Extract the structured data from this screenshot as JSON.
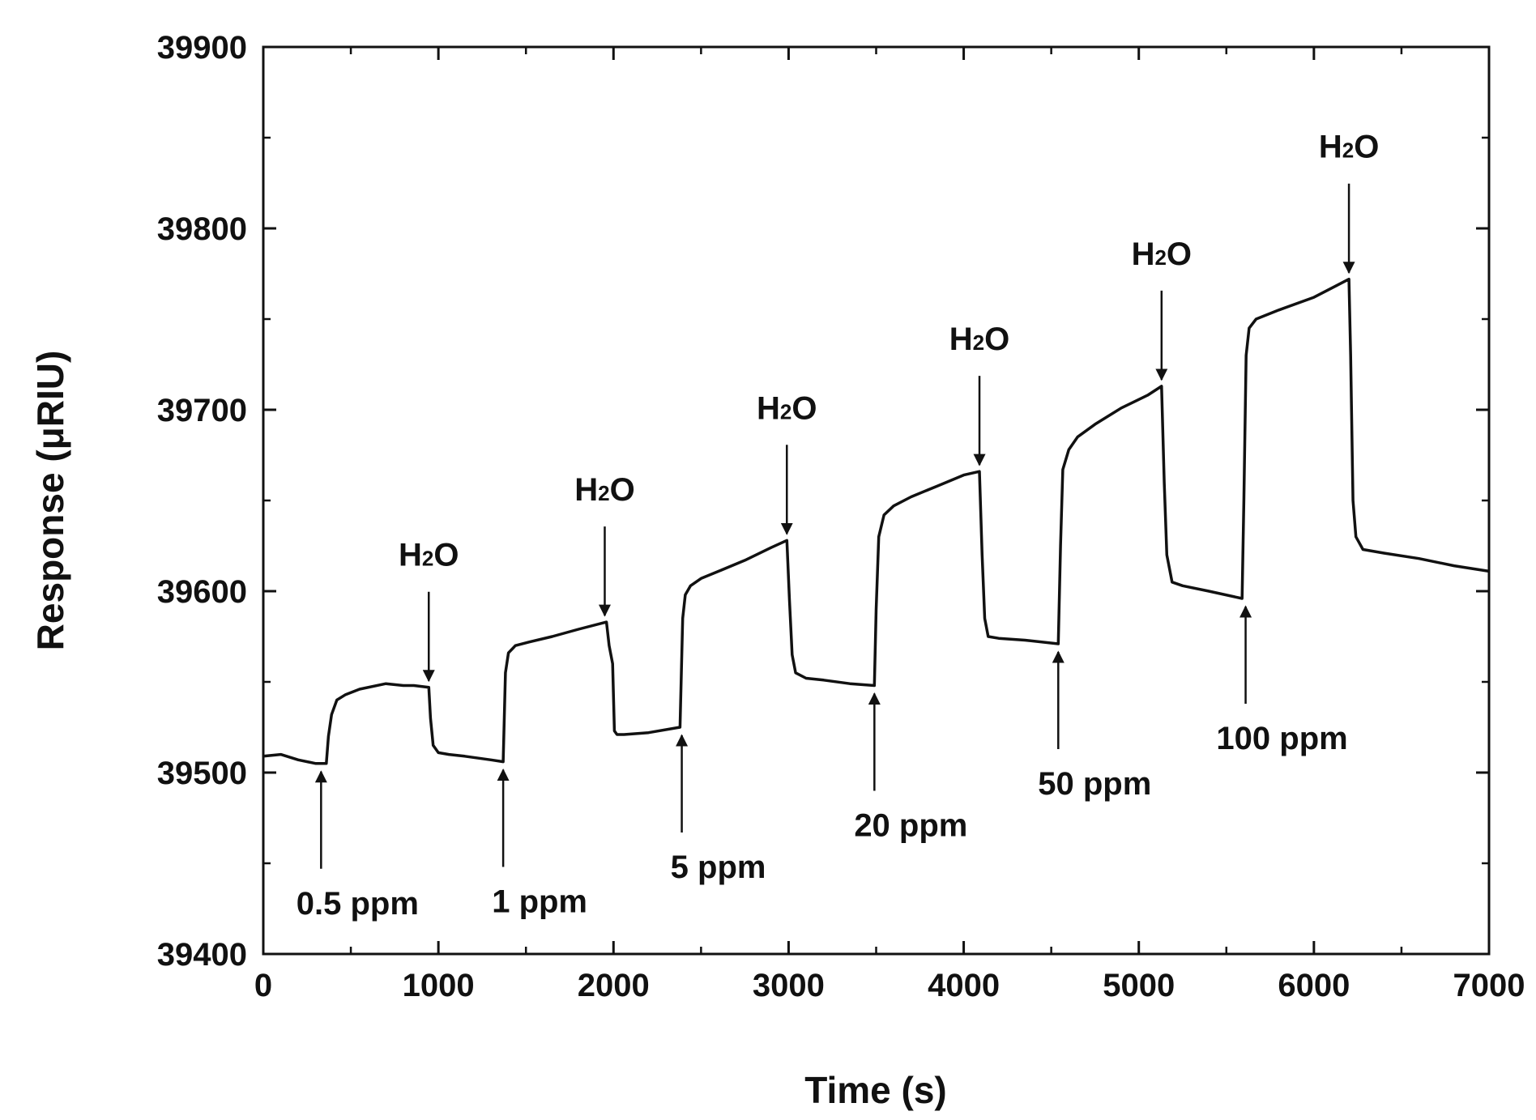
{
  "chart_data": {
    "type": "line",
    "title": "",
    "xlabel": "Time (s)",
    "ylabel": "Response (μRIU)",
    "xlim": [
      0,
      7000
    ],
    "ylim": [
      39400,
      39900
    ],
    "xticks": [
      "0",
      "1000",
      "2000",
      "3000",
      "4000",
      "5000",
      "6000",
      "7000"
    ],
    "xtick_values": [
      0,
      1000,
      2000,
      3000,
      4000,
      5000,
      6000,
      7000
    ],
    "yticks": [
      "39400",
      "39500",
      "39600",
      "39700",
      "39800",
      "39900"
    ],
    "ytick_values": [
      39400,
      39500,
      39600,
      39700,
      39800,
      39900
    ],
    "grid": false,
    "series": [
      {
        "name": "Response",
        "color": "#111111",
        "x": [
          0,
          100,
          200,
          300,
          360,
          372,
          390,
          420,
          470,
          550,
          700,
          800,
          860,
          945,
          955,
          970,
          1000,
          1060,
          1150,
          1300,
          1370,
          1383,
          1400,
          1440,
          1520,
          1650,
          1800,
          1960,
          1975,
          1995,
          2005,
          2020,
          2060,
          2200,
          2380,
          2395,
          2410,
          2440,
          2500,
          2600,
          2750,
          2900,
          2990,
          3005,
          3020,
          3040,
          3100,
          3200,
          3350,
          3490,
          3500,
          3515,
          3545,
          3600,
          3700,
          3850,
          4000,
          4090,
          4105,
          4120,
          4140,
          4200,
          4350,
          4540,
          4553,
          4566,
          4600,
          4650,
          4750,
          4900,
          5050,
          5130,
          5145,
          5160,
          5190,
          5250,
          5400,
          5590,
          5600,
          5613,
          5630,
          5670,
          5800,
          6000,
          6200,
          6210,
          6223,
          6240,
          6280,
          6400,
          6600,
          6800,
          7000
        ],
        "y": [
          39509,
          39510,
          39507,
          39505,
          39505,
          39520,
          39532,
          39540,
          39543,
          39546,
          39549,
          39548,
          39548,
          39547,
          39530,
          39515,
          39511,
          39510,
          39509,
          39507,
          39506,
          39555,
          39566,
          39570,
          39572,
          39575,
          39579,
          39583,
          39570,
          39560,
          39523,
          39521,
          39521,
          39522,
          39525,
          39585,
          39598,
          39603,
          39607,
          39611,
          39617,
          39624,
          39628,
          39595,
          39565,
          39555,
          39552,
          39551,
          39549,
          39548,
          39590,
          39630,
          39642,
          39647,
          39652,
          39658,
          39664,
          39666,
          39620,
          39585,
          39575,
          39574,
          39573,
          39571,
          39625,
          39667,
          39678,
          39685,
          39692,
          39701,
          39708,
          39713,
          39660,
          39620,
          39605,
          39603,
          39600,
          39596,
          39650,
          39730,
          39745,
          39750,
          39755,
          39762,
          39772,
          39730,
          39650,
          39630,
          39623,
          39621,
          39618,
          39614,
          39611
        ]
      }
    ],
    "annotations": [
      {
        "type": "injection",
        "label": "0.5 ppm",
        "x": 330,
        "y": 39505
      },
      {
        "type": "injection",
        "label": "1 ppm",
        "x": 1370,
        "y": 39506
      },
      {
        "type": "injection",
        "label": "5 ppm",
        "x": 2390,
        "y": 39525
      },
      {
        "type": "injection",
        "label": "20 ppm",
        "x": 3490,
        "y": 39548
      },
      {
        "type": "injection",
        "label": "50 ppm",
        "x": 4540,
        "y": 39571
      },
      {
        "type": "injection",
        "label": "100 ppm",
        "x": 5610,
        "y": 39596
      },
      {
        "type": "rinse",
        "label_main": "H",
        "label_sub": "2",
        "label_end": "O",
        "x": 945,
        "y": 39547
      },
      {
        "type": "rinse",
        "label_main": "H",
        "label_sub": "2",
        "label_end": "O",
        "x": 1950,
        "y": 39583
      },
      {
        "type": "rinse",
        "label_main": "H",
        "label_sub": "2",
        "label_end": "O",
        "x": 2990,
        "y": 39628
      },
      {
        "type": "rinse",
        "label_main": "H",
        "label_sub": "2",
        "label_end": "O",
        "x": 4090,
        "y": 39666
      },
      {
        "type": "rinse",
        "label_main": "H",
        "label_sub": "2",
        "label_end": "O",
        "x": 5130,
        "y": 39713
      },
      {
        "type": "rinse",
        "label_main": "H",
        "label_sub": "2",
        "label_end": "O",
        "x": 6200,
        "y": 39772
      }
    ]
  }
}
